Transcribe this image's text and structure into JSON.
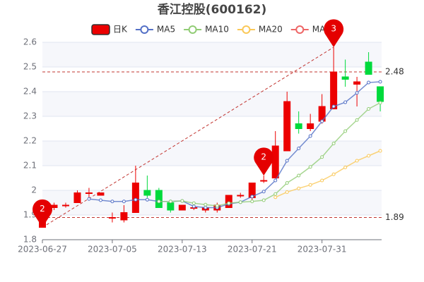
{
  "chart_data": {
    "type": "candlestick",
    "title": "香江控股(600162)",
    "candle_name": "日K",
    "up_color": "#ec0000",
    "down_color": "#00da3c",
    "categories": [
      "2023-06-27",
      null,
      null,
      null,
      null,
      null,
      "2023-07-05",
      null,
      null,
      null,
      null,
      null,
      "2023-07-13",
      null,
      null,
      null,
      null,
      null,
      "2023-07-21",
      null,
      null,
      null,
      null,
      null,
      "2023-07-31",
      null,
      null,
      null,
      null,
      null
    ],
    "open": [
      1.85,
      1.93,
      1.94,
      1.95,
      1.99,
      1.98,
      1.89,
      1.88,
      1.91,
      2.0,
      2.0,
      1.95,
      1.92,
      1.93,
      1.92,
      1.92,
      1.93,
      1.98,
      1.97,
      2.04,
      2.05,
      2.16,
      2.27,
      2.25,
      2.28,
      2.33,
      2.46,
      2.43,
      2.52,
      2.42
    ],
    "close": [
      1.92,
      1.94,
      1.94,
      1.99,
      1.99,
      1.99,
      1.89,
      1.91,
      2.03,
      1.98,
      1.93,
      1.92,
      1.94,
      1.93,
      1.93,
      1.94,
      1.98,
      1.98,
      2.03,
      2.04,
      2.18,
      2.36,
      2.25,
      2.27,
      2.34,
      2.48,
      2.45,
      2.44,
      2.47,
      2.36
    ],
    "high": [
      1.93,
      1.95,
      1.95,
      2.0,
      2.01,
      1.99,
      1.91,
      1.94,
      2.1,
      2.06,
      2.01,
      1.96,
      1.94,
      1.94,
      1.94,
      1.95,
      1.98,
      1.99,
      2.03,
      2.06,
      2.24,
      2.4,
      2.32,
      2.31,
      2.39,
      2.58,
      2.53,
      2.46,
      2.56,
      2.42
    ],
    "low": [
      1.85,
      1.92,
      1.93,
      1.95,
      1.97,
      1.98,
      1.87,
      1.87,
      1.91,
      1.97,
      1.93,
      1.91,
      1.92,
      1.92,
      1.91,
      1.91,
      1.93,
      1.97,
      1.96,
      2.03,
      2.05,
      2.16,
      2.23,
      2.24,
      2.27,
      2.33,
      2.42,
      2.34,
      2.47,
      2.32
    ],
    "series": [
      {
        "name": "MA5",
        "color": "#5470c6",
        "values": [
          null,
          null,
          null,
          null,
          1.965,
          1.96,
          1.955,
          1.955,
          1.962,
          1.962,
          1.955,
          1.955,
          1.957,
          1.935,
          1.93,
          1.93,
          1.945,
          1.952,
          1.975,
          1.995,
          2.04,
          2.12,
          2.17,
          2.22,
          2.28,
          2.34,
          2.357,
          2.395,
          2.437,
          2.44
        ]
      },
      {
        "name": "MA10",
        "color": "#91cc75",
        "values": [
          null,
          null,
          null,
          null,
          null,
          null,
          null,
          null,
          null,
          null,
          1.955,
          1.955,
          1.957,
          1.948,
          1.942,
          1.937,
          1.948,
          1.952,
          1.955,
          1.96,
          1.985,
          2.03,
          2.06,
          2.095,
          2.135,
          2.19,
          2.24,
          2.285,
          2.33,
          2.355
        ]
      },
      {
        "name": "MA20",
        "color": "#fac858",
        "values": [
          null,
          null,
          null,
          null,
          null,
          null,
          null,
          null,
          null,
          null,
          null,
          null,
          null,
          null,
          null,
          null,
          null,
          null,
          null,
          null,
          1.972,
          1.993,
          2.008,
          2.022,
          2.04,
          2.065,
          2.093,
          2.12,
          2.14,
          2.16
        ]
      },
      {
        "name": "MA30",
        "color": "#ee6666",
        "values": [
          null,
          null,
          null,
          null,
          null,
          null,
          null,
          null,
          null,
          null,
          null,
          null,
          null,
          null,
          null,
          null,
          null,
          null,
          null,
          null,
          null,
          null,
          null,
          null,
          null,
          null,
          null,
          null,
          null,
          null
        ]
      }
    ],
    "ylim": [
      1.8,
      2.6
    ],
    "yticks": [
      1.8,
      1.9,
      2,
      2.1,
      2.2,
      2.3,
      2.4,
      2.5,
      2.6
    ],
    "mark_lines": [
      2.48,
      1.89
    ],
    "mark_line_color": "#c23531",
    "pins": [
      {
        "label": "2",
        "index": 0,
        "value": 1.85
      },
      {
        "label": "2",
        "index": 19,
        "value": 2.06
      },
      {
        "label": "3",
        "index": 25,
        "value": 2.58
      }
    ],
    "pin_color": "#e40000"
  }
}
